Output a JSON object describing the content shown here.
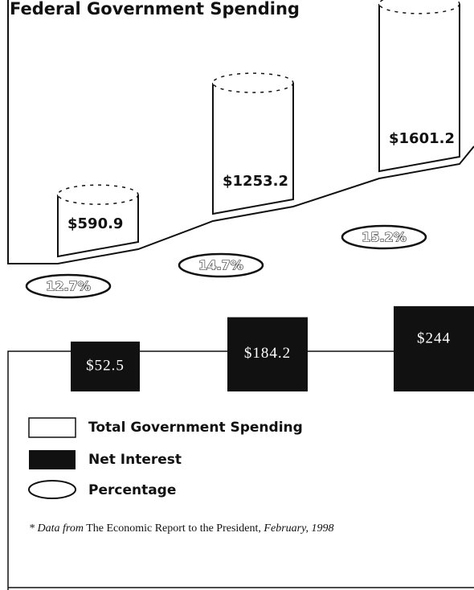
{
  "chart_data": {
    "type": "pictograph",
    "title": "Federal Government Spending",
    "categories": [
      null,
      null,
      null
    ],
    "series": [
      {
        "name": "Total Government Spending",
        "color": "#ffffff",
        "values": [
          590.9,
          1253.2,
          1601.2
        ],
        "value_labels": [
          "$590.9",
          "$1253.2",
          "$1601.2"
        ]
      },
      {
        "name": "Net Interest",
        "color": "#111111",
        "values": [
          52.5,
          184.2,
          244
        ],
        "value_labels": [
          "$52.5",
          "$184.2",
          "$244"
        ]
      },
      {
        "name": "Percentage",
        "color": "#ffffff",
        "values": [
          12.7,
          14.7,
          15.2
        ],
        "value_labels": [
          "12.7%",
          "14.7%",
          "15.2%"
        ]
      }
    ],
    "note": [
      "* Data from",
      "The Economic Report to the President,",
      "February, 1998"
    ]
  }
}
